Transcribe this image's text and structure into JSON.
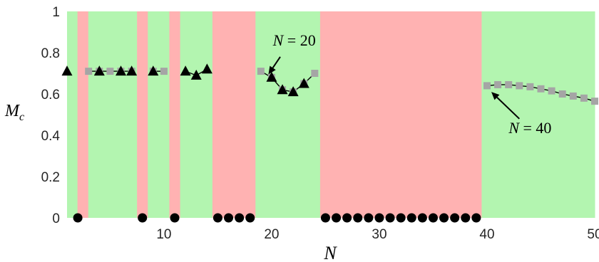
{
  "chart_data": {
    "type": "scatter",
    "xlabel": "N",
    "ylabel": "M_c",
    "xlim": [
      1,
      50
    ],
    "ylim": [
      0,
      1
    ],
    "xticks": [
      10,
      20,
      30,
      40,
      50
    ],
    "yticks": [
      0,
      0.2,
      0.4,
      0.6,
      0.8,
      1
    ],
    "grid": false,
    "colors": {
      "green": "#b3f5b0",
      "red": "#ffb2b2",
      "marker": "#000000",
      "square": "#a5a5a5"
    },
    "regions": [
      {
        "x0": 1,
        "x1": 1.97,
        "color": "green"
      },
      {
        "x0": 1.97,
        "x1": 2.97,
        "color": "red"
      },
      {
        "x0": 2.97,
        "x1": 7.5,
        "color": "green"
      },
      {
        "x0": 7.5,
        "x1": 8.5,
        "color": "red"
      },
      {
        "x0": 8.5,
        "x1": 10.5,
        "color": "green"
      },
      {
        "x0": 10.5,
        "x1": 11.5,
        "color": "red"
      },
      {
        "x0": 11.5,
        "x1": 14.5,
        "color": "green"
      },
      {
        "x0": 14.5,
        "x1": 18.5,
        "color": "red"
      },
      {
        "x0": 18.5,
        "x1": 24.5,
        "color": "green"
      },
      {
        "x0": 24.5,
        "x1": 39.5,
        "color": "red"
      },
      {
        "x0": 39.5,
        "x1": 50,
        "color": "green"
      }
    ],
    "series": [
      {
        "marker": "triangle",
        "x": [
          1,
          4,
          6,
          7,
          9,
          12,
          13,
          14,
          20,
          21,
          22,
          23
        ],
        "y": [
          0.71,
          0.71,
          0.71,
          0.71,
          0.71,
          0.71,
          0.69,
          0.72,
          0.68,
          0.62,
          0.61,
          0.65
        ]
      },
      {
        "marker": "circle",
        "x": [
          2,
          8,
          11,
          15,
          16,
          17,
          18,
          25,
          26,
          27,
          28,
          29,
          30,
          31,
          32,
          33,
          34,
          35,
          36,
          37,
          38,
          39
        ],
        "y": [
          0,
          0,
          0,
          0,
          0,
          0,
          0,
          0,
          0,
          0,
          0,
          0,
          0,
          0,
          0,
          0,
          0,
          0,
          0,
          0,
          0,
          0
        ]
      },
      {
        "marker": "square",
        "x": [
          3,
          4,
          5,
          6,
          7,
          9,
          10,
          19,
          20,
          21,
          22,
          23,
          24,
          40,
          41,
          42,
          43,
          44,
          45,
          46,
          47,
          48,
          49,
          50
        ],
        "y": [
          0.71,
          0.71,
          0.71,
          0.71,
          0.71,
          0.71,
          0.71,
          0.71,
          0.68,
          0.62,
          0.61,
          0.65,
          0.7,
          0.64,
          0.645,
          0.645,
          0.64,
          0.635,
          0.625,
          0.615,
          0.6,
          0.59,
          0.58,
          0.565
        ]
      }
    ],
    "lines": [
      {
        "x": [
          3,
          4,
          5,
          6,
          7
        ],
        "y": [
          0.71,
          0.71,
          0.71,
          0.71,
          0.71
        ]
      },
      {
        "x": [
          9,
          10
        ],
        "y": [
          0.71,
          0.71
        ]
      },
      {
        "x": [
          12,
          13,
          14
        ],
        "y": [
          0.71,
          0.69,
          0.72
        ]
      },
      {
        "x": [
          19,
          20,
          21,
          22,
          23,
          24
        ],
        "y": [
          0.71,
          0.68,
          0.62,
          0.61,
          0.65,
          0.7
        ]
      },
      {
        "x": [
          40,
          41,
          42,
          43,
          44,
          45,
          46,
          47,
          48,
          49,
          50
        ],
        "y": [
          0.64,
          0.645,
          0.645,
          0.64,
          0.635,
          0.625,
          0.615,
          0.6,
          0.59,
          0.58,
          0.565
        ]
      }
    ],
    "annotations": [
      {
        "label": "N",
        "value": "20",
        "text_at": [
          22.1,
          0.835
        ],
        "arrow_from": [
          20.8,
          0.78
        ],
        "arrow_to": [
          19.7,
          0.695
        ]
      },
      {
        "label": "N",
        "value": "40",
        "text_at": [
          44.0,
          0.41
        ],
        "arrow_from": [
          43.0,
          0.48
        ],
        "arrow_to": [
          40.4,
          0.61
        ]
      }
    ]
  }
}
